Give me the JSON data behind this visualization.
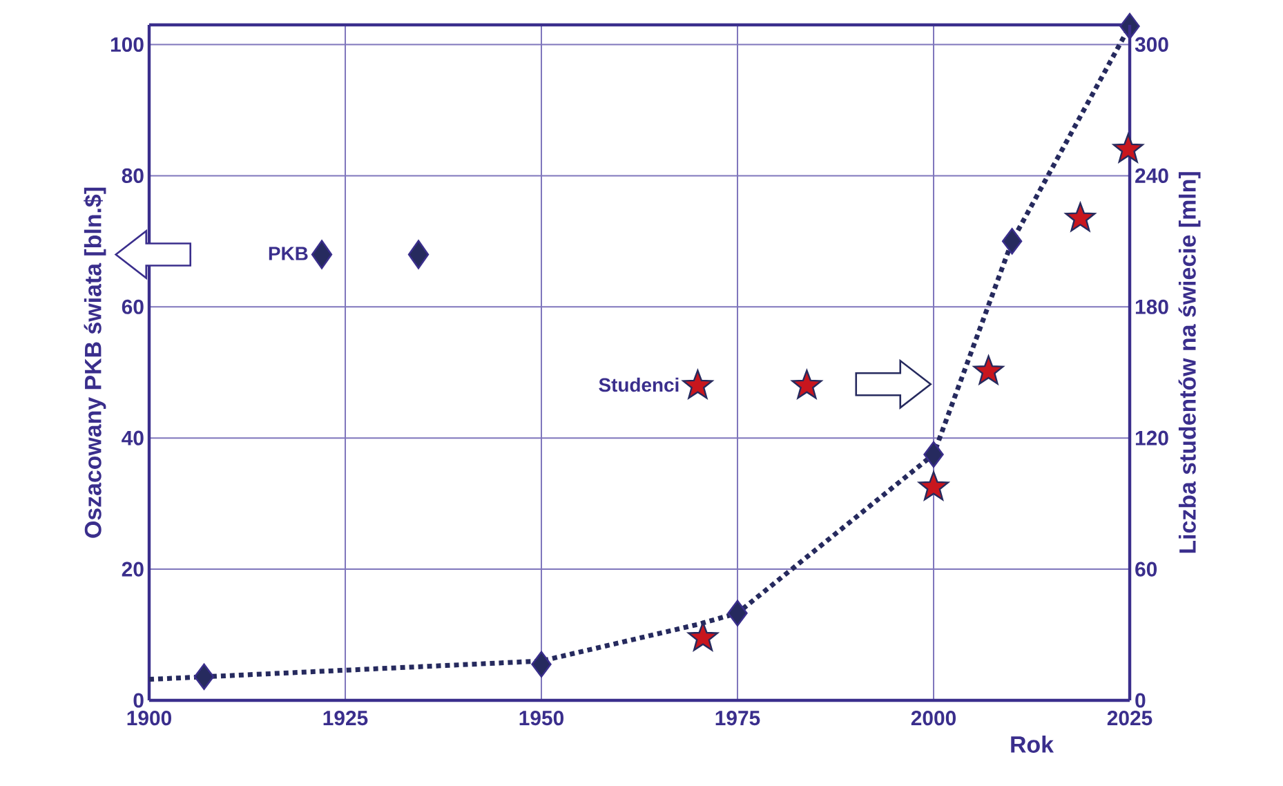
{
  "chart_data": {
    "type": "scatter",
    "xlabel": "Rok",
    "ylabel": "Oszacowany PKB świata [bln.$]",
    "y2label": "Liczba studentów na świecie [mln]",
    "xlim": [
      1900,
      2025
    ],
    "xticks": [
      1900,
      1925,
      1950,
      1975,
      2000,
      2025
    ],
    "ylim": [
      0,
      103
    ],
    "yticks": [
      0,
      20,
      40,
      60,
      80,
      100
    ],
    "y2lim": [
      0,
      309
    ],
    "y2ticks": [
      0,
      60,
      120,
      180,
      240,
      300
    ],
    "grid": true,
    "legend": "center left",
    "series": [
      {
        "name": "PKB",
        "type": "scatter",
        "marker": "diamond",
        "color": "#262a5e",
        "x": [
          1907,
          1950,
          1975,
          2000,
          2010,
          2025
        ],
        "values": [
          3.6,
          5.5,
          13.3,
          37.5,
          70,
          102.8
        ]
      },
      {
        "type": "line",
        "line_style": "dotted",
        "marker": "none",
        "color": "#262a5e",
        "x": [
          1900,
          1950,
          1970,
          1975,
          2000,
          2010,
          2025
        ],
        "values": [
          3.2,
          6,
          11.6,
          13.3,
          37.5,
          70,
          102.8
        ]
      },
      {
        "name": "Studenci",
        "type": "scatter",
        "axis": "y2",
        "marker": "star",
        "color": "#c8161e",
        "x": [
          1970.6,
          2000,
          2007,
          2018.7,
          2024.8
        ],
        "values": [
          28.6,
          97.5,
          150.5,
          220.5,
          252
        ]
      }
    ]
  }
}
